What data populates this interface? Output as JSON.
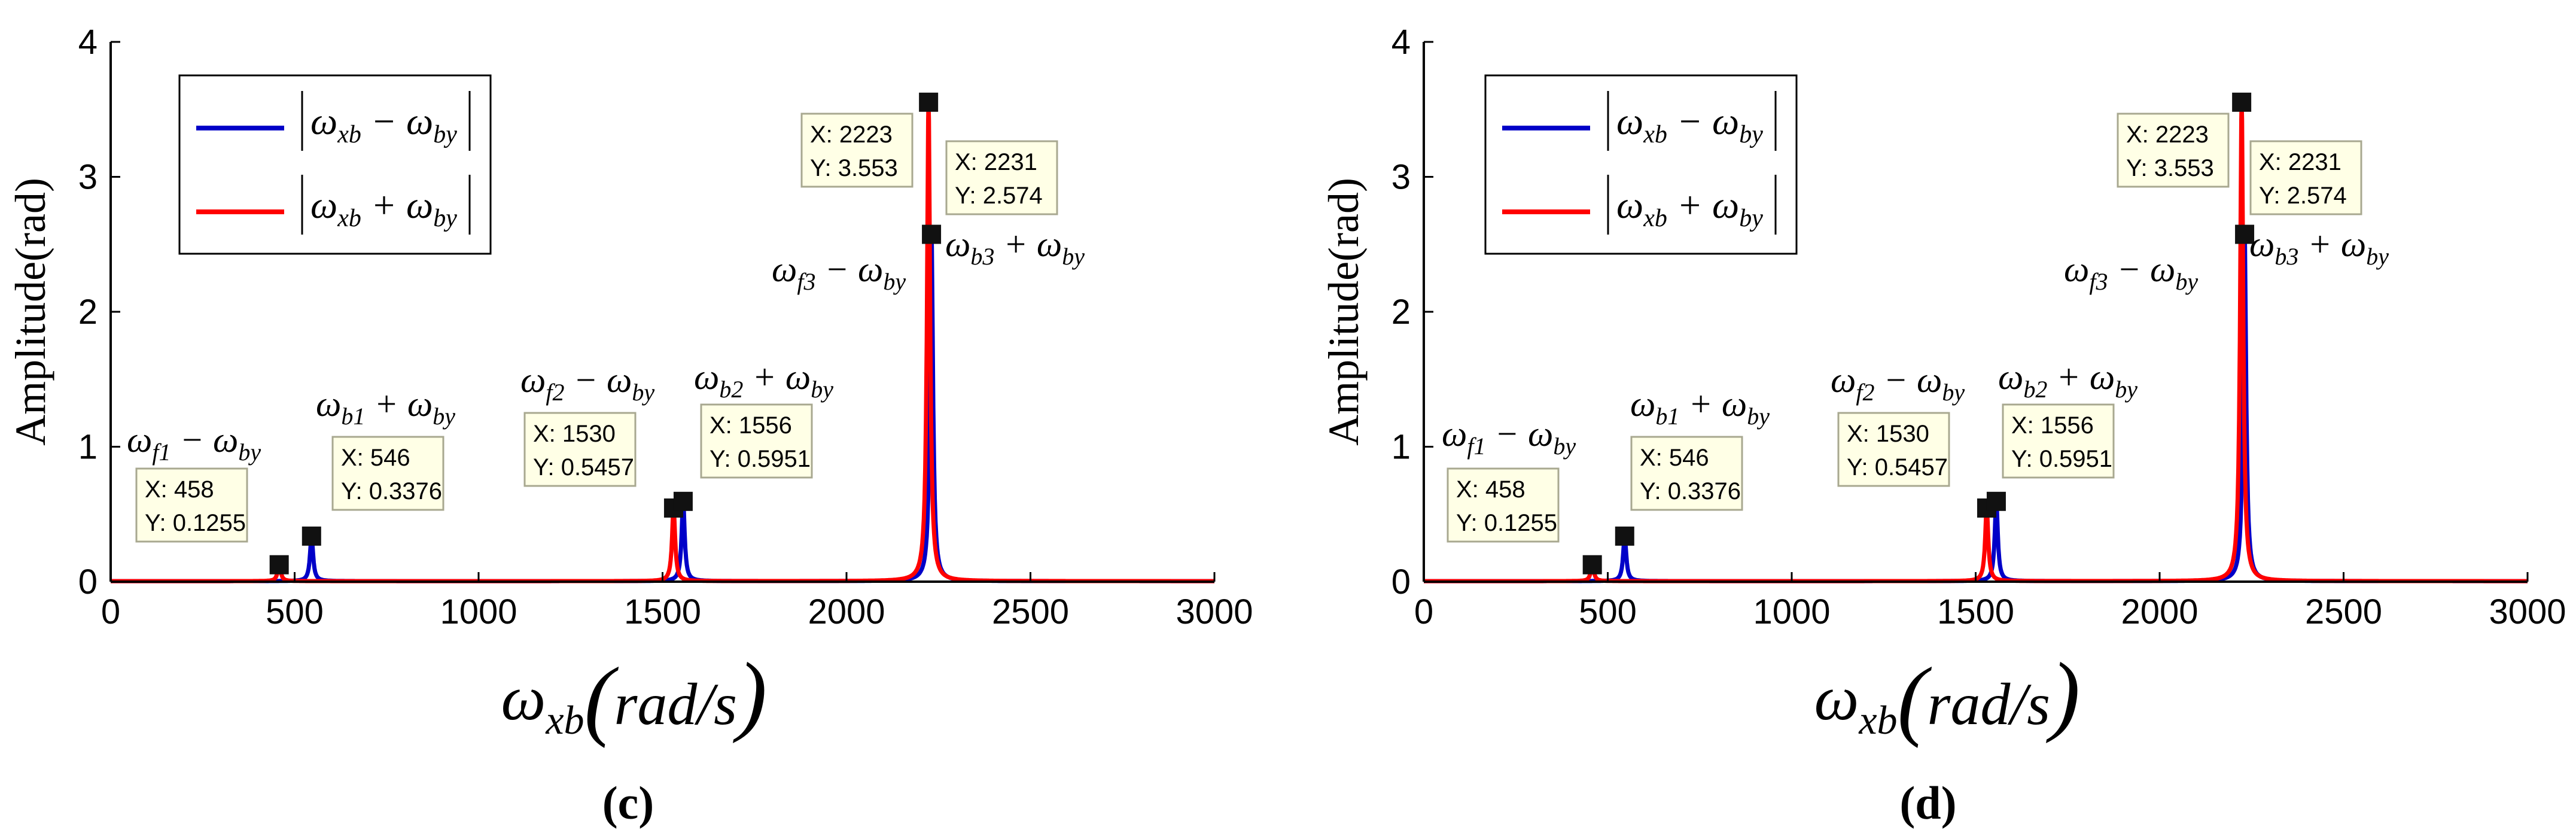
{
  "colors": {
    "blue": "#0000c8",
    "red": "#ff0000",
    "marker": "#111111",
    "tip_bg": "#ffffe6"
  },
  "chart_data": [
    {
      "panel": "c",
      "caption": "(c)",
      "type": "line",
      "ylabel": "Amplitude(rad)",
      "xlabel": {
        "symbol": "ω",
        "sub": "xb",
        "unit": "rad/s"
      },
      "xlim": [
        0,
        3000
      ],
      "ylim": [
        0,
        4
      ],
      "xticks": [
        0,
        500,
        1000,
        1500,
        2000,
        2500,
        3000
      ],
      "yticks": [
        0,
        1,
        2,
        3,
        4
      ],
      "legend": [
        {
          "name": "|ω_xb − ω_by|",
          "a": "xb",
          "op": "−",
          "b": "by",
          "color": "#0000c8"
        },
        {
          "name": "|ω_xb + ω_by|",
          "a": "xb",
          "op": "+",
          "b": "by",
          "color": "#ff0000"
        }
      ],
      "series": [
        {
          "name": "|ω_xb − ω_by|",
          "color": "#0000c8",
          "peaks": [
            {
              "x": 546,
              "y": 0.3376
            },
            {
              "x": 1556,
              "y": 0.5951
            },
            {
              "x": 2231,
              "y": 2.574
            }
          ]
        },
        {
          "name": "|ω_xb + ω_by|",
          "color": "#ff0000",
          "peaks": [
            {
              "x": 458,
              "y": 0.1255
            },
            {
              "x": 1530,
              "y": 0.5457
            },
            {
              "x": 2223,
              "y": 3.553
            }
          ]
        }
      ],
      "datatips": [
        {
          "x_label": "X: 458",
          "y_label": "Y: 0.1255",
          "x": 458,
          "y": 0.1255
        },
        {
          "x_label": "X: 546",
          "y_label": "Y: 0.3376",
          "x": 546,
          "y": 0.3376
        },
        {
          "x_label": "X: 1530",
          "y_label": "Y: 0.5457",
          "x": 1530,
          "y": 0.5457
        },
        {
          "x_label": "X: 1556",
          "y_label": "Y: 0.5951",
          "x": 1556,
          "y": 0.5951
        },
        {
          "x_label": "X: 2223",
          "y_label": "Y: 3.553",
          "x": 2223,
          "y": 3.553
        },
        {
          "x_label": "X: 2231",
          "y_label": "Y: 2.574",
          "x": 2231,
          "y": 2.574
        }
      ],
      "annotations": [
        {
          "label": "ω_f1 − ω_by",
          "s": "f",
          "n": "1",
          "op": "−",
          "t": "by"
        },
        {
          "label": "ω_b1 + ω_by",
          "s": "b",
          "n": "1",
          "op": "+",
          "t": "by"
        },
        {
          "label": "ω_f2 − ω_by",
          "s": "f",
          "n": "2",
          "op": "−",
          "t": "by"
        },
        {
          "label": "ω_b2 + ω_by",
          "s": "b",
          "n": "2",
          "op": "+",
          "t": "by"
        },
        {
          "label": "ω_f3 − ω_by",
          "s": "f",
          "n": "3",
          "op": "−",
          "t": "by"
        },
        {
          "label": "ω_b3 + ω_by",
          "s": "b",
          "n": "3",
          "op": "+",
          "t": "by"
        }
      ]
    },
    {
      "panel": "d",
      "caption": "(d)",
      "type": "line",
      "ylabel": "Amplitude(rad)",
      "xlabel": {
        "symbol": "ω",
        "sub": "xb",
        "unit": "rad/s"
      },
      "xlim": [
        0,
        3000
      ],
      "ylim": [
        0,
        4
      ],
      "xticks": [
        0,
        500,
        1000,
        1500,
        2000,
        2500,
        3000
      ],
      "yticks": [
        0,
        1,
        2,
        3,
        4
      ],
      "legend": [
        {
          "name": "|ω_xb − ω_by|",
          "a": "xb",
          "op": "−",
          "b": "by",
          "color": "#0000c8"
        },
        {
          "name": "|ω_xb + ω_by|",
          "a": "xb",
          "op": "+",
          "b": "by",
          "color": "#ff0000"
        }
      ],
      "series": [
        {
          "name": "|ω_xb − ω_by|",
          "color": "#0000c8",
          "peaks": [
            {
              "x": 546,
              "y": 0.3376
            },
            {
              "x": 1556,
              "y": 0.5951
            },
            {
              "x": 2231,
              "y": 2.574
            }
          ]
        },
        {
          "name": "|ω_xb + ω_by|",
          "color": "#ff0000",
          "peaks": [
            {
              "x": 458,
              "y": 0.1255
            },
            {
              "x": 1530,
              "y": 0.5457
            },
            {
              "x": 2223,
              "y": 3.553
            }
          ]
        }
      ],
      "datatips": [
        {
          "x_label": "X: 458",
          "y_label": "Y: 0.1255",
          "x": 458,
          "y": 0.1255
        },
        {
          "x_label": "X: 546",
          "y_label": "Y: 0.3376",
          "x": 546,
          "y": 0.3376
        },
        {
          "x_label": "X: 1530",
          "y_label": "Y: 0.5457",
          "x": 1530,
          "y": 0.5457
        },
        {
          "x_label": "X: 1556",
          "y_label": "Y: 0.5951",
          "x": 1556,
          "y": 0.5951
        },
        {
          "x_label": "X: 2223",
          "y_label": "Y: 3.553",
          "x": 2223,
          "y": 3.553
        },
        {
          "x_label": "X: 2231",
          "y_label": "Y: 2.574",
          "x": 2231,
          "y": 2.574
        }
      ],
      "annotations": [
        {
          "label": "ω_f1 − ω_by",
          "s": "f",
          "n": "1",
          "op": "−",
          "t": "by"
        },
        {
          "label": "ω_b1 + ω_by",
          "s": "b",
          "n": "1",
          "op": "+",
          "t": "by"
        },
        {
          "label": "ω_f2 − ω_by",
          "s": "f",
          "n": "2",
          "op": "−",
          "t": "by"
        },
        {
          "label": "ω_b2 + ω_by",
          "s": "b",
          "n": "2",
          "op": "+",
          "t": "by"
        },
        {
          "label": "ω_f3 − ω_by",
          "s": "f",
          "n": "3",
          "op": "−",
          "t": "by"
        },
        {
          "label": "ω_b3 + ω_by",
          "s": "b",
          "n": "3",
          "op": "+",
          "t": "by"
        }
      ]
    }
  ]
}
